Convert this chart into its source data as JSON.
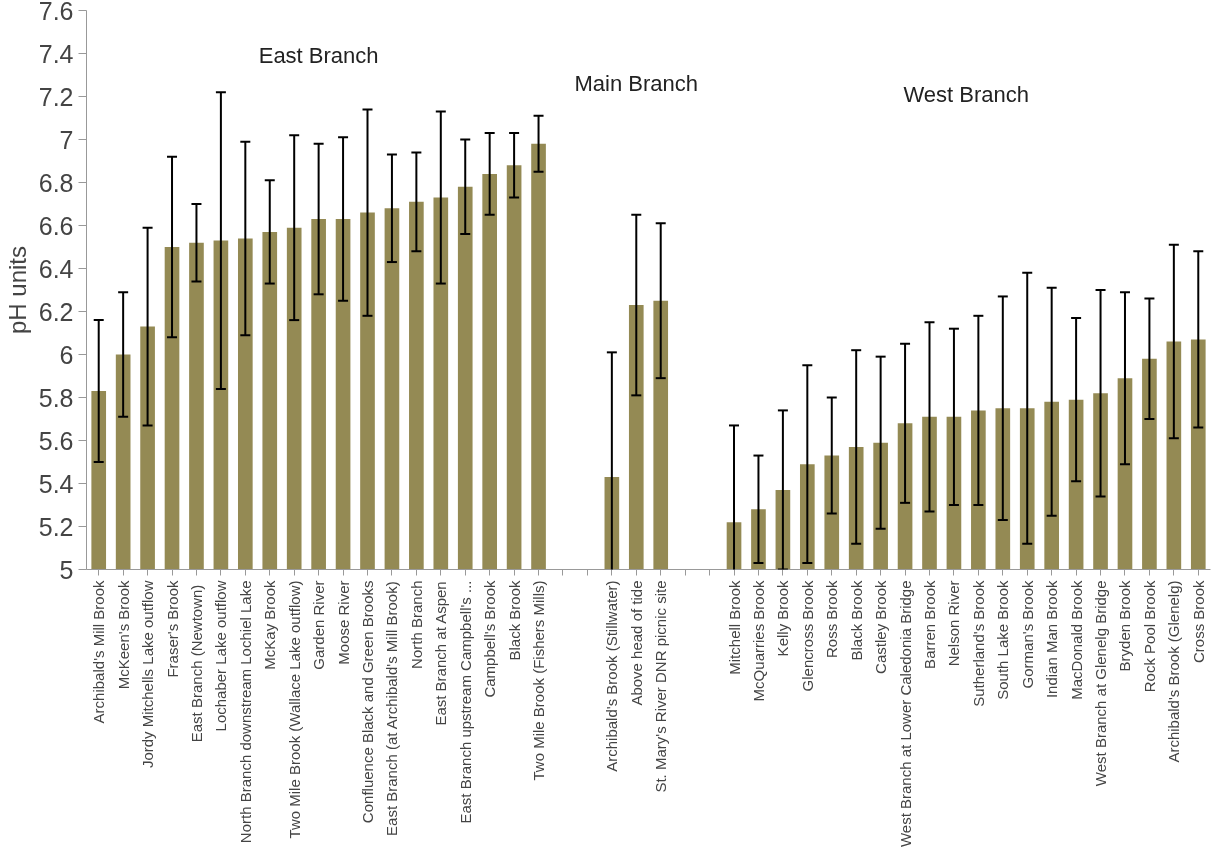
{
  "chart_data": {
    "type": "bar",
    "ylabel": "pH units",
    "categories": [
      "Archibald's Mill Brook",
      "McKeen's Brook",
      "Jordy Mitchells Lake outflow",
      "Fraser's Brook",
      "East Branch  (Newtown)",
      "Lochaber Lake outflow",
      "North Branch downstream Lochiel Lake",
      "McKay Brook",
      "Two Mile Brook (Wallace Lake outflow)",
      "Garden River",
      "Moose River",
      "Confluence Black and Green Brooks",
      "East Branch (at Archibald's Mill Brook)",
      "North Branch",
      "East Branch at Aspen",
      "East Branch upstream Campbell's ...",
      "Campbell's Brook",
      "Black Brook",
      "Two Mile Brook (Fishers Mills)",
      null,
      null,
      "Archibald's Brook (Stillwater)",
      "Above head of tide",
      "St. Mary's River DNR picnic site",
      null,
      null,
      "Mitchell Brook",
      "McQuarries Brook",
      "Kelly Brook",
      "Glencross Brook",
      "Ross Brook",
      "Black Brook",
      "Castley Brook",
      "West Branch at Lower Caledonia Bridge",
      "Barren Brook",
      "Nelson River",
      "Sutherland's Brook",
      "South Lake Brook",
      "Gorman's Brook",
      "Indian Man Brook",
      "MacDonald Brook",
      "West Branch at Glenelg Bridge",
      "Bryden Brook",
      "Rock Pool Brook",
      "Archibald's Brook (Glenelg)",
      "Cross Brook"
    ],
    "values": [
      5.83,
      6.0,
      6.13,
      6.5,
      6.52,
      6.53,
      6.54,
      6.57,
      6.59,
      6.63,
      6.63,
      6.66,
      6.68,
      6.71,
      6.73,
      6.78,
      6.84,
      6.88,
      6.98,
      null,
      null,
      5.43,
      6.23,
      6.25,
      null,
      null,
      5.22,
      5.28,
      5.37,
      5.49,
      5.53,
      5.57,
      5.59,
      5.68,
      5.71,
      5.71,
      5.74,
      5.75,
      5.75,
      5.78,
      5.79,
      5.82,
      5.89,
      5.98,
      6.06,
      6.07
    ],
    "errors": [
      0.33,
      0.29,
      0.46,
      0.42,
      0.18,
      0.69,
      0.45,
      0.24,
      0.43,
      0.35,
      0.38,
      0.48,
      0.25,
      0.23,
      0.4,
      0.22,
      0.19,
      0.15,
      0.13,
      null,
      null,
      0.58,
      0.42,
      0.36,
      null,
      null,
      0.45,
      0.25,
      0.37,
      0.46,
      0.27,
      0.45,
      0.4,
      0.37,
      0.44,
      0.41,
      0.44,
      0.52,
      0.63,
      0.53,
      0.38,
      0.48,
      0.4,
      0.28,
      0.45,
      0.41
    ],
    "color": "#948a54",
    "ylim": [
      5,
      7.6
    ],
    "yticks": [
      5,
      5.2,
      5.4,
      5.6,
      5.8,
      6,
      6.2,
      6.4,
      6.6,
      6.8,
      7,
      7.2,
      7.4,
      7.6
    ],
    "annotations": [
      "East Branch",
      "Main Branch",
      "West Branch"
    ]
  }
}
